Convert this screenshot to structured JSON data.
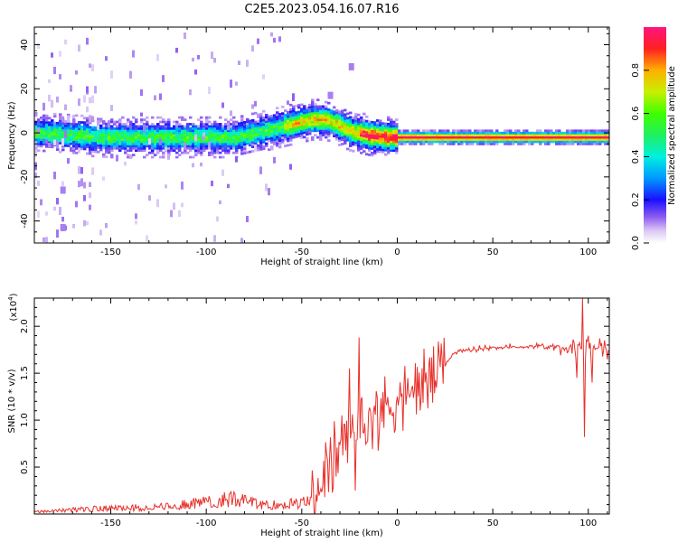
{
  "figure": {
    "title": "C2E5.2023.054.16.07.R16"
  },
  "chart_data": [
    {
      "type": "heatmap",
      "xlabel": "Height of straight line (km)",
      "ylabel": "Frequency (Hz)",
      "xlim": [
        -190,
        111
      ],
      "ylim": [
        -50,
        48
      ],
      "xticks": [
        -150,
        -100,
        -50,
        0,
        50,
        100
      ],
      "yticks": [
        -40,
        -20,
        0,
        20,
        40
      ],
      "ridge_center_hz": [
        [
          -188,
          0
        ],
        [
          -170,
          -1
        ],
        [
          -150,
          -2
        ],
        [
          -125,
          -2
        ],
        [
          -100,
          -2
        ],
        [
          -85,
          -2
        ],
        [
          -75,
          0
        ],
        [
          -65,
          2
        ],
        [
          -55,
          4
        ],
        [
          -45,
          6
        ],
        [
          -38,
          6
        ],
        [
          -32,
          4
        ],
        [
          -25,
          1
        ],
        [
          -15,
          -1
        ],
        [
          -5,
          -2
        ],
        [
          10,
          -2
        ],
        [
          40,
          -2
        ],
        [
          80,
          -2
        ],
        [
          95,
          -2
        ],
        [
          111,
          -2
        ]
      ],
      "colorbar": {
        "label": "Normalized spectral amplitude",
        "ticks": [
          0.0,
          0.2,
          0.4,
          0.6,
          0.8
        ],
        "range": [
          0,
          1
        ]
      }
    },
    {
      "type": "line",
      "xlabel": "Height of straight line (km)",
      "ylabel": "SNR (10 * v/v)",
      "multiplier_label": "(x10",
      "multiplier_exp": "4",
      "xlim": [
        -190,
        111
      ],
      "ylim": [
        0,
        2.3
      ],
      "xticks": [
        -150,
        -100,
        -50,
        0,
        50,
        100
      ],
      "yticks": [
        0.5,
        1.0,
        1.5,
        2.0
      ],
      "line_color": "#e8302a",
      "envelope": [
        [
          -190,
          0.02
        ],
        [
          -160,
          0.05
        ],
        [
          -120,
          0.07
        ],
        [
          -100,
          0.12
        ],
        [
          -85,
          0.15
        ],
        [
          -70,
          0.08
        ],
        [
          -55,
          0.1
        ],
        [
          -45,
          0.12
        ],
        [
          -40,
          0.35
        ],
        [
          -35,
          0.5
        ],
        [
          -30,
          0.7
        ],
        [
          -25,
          0.85
        ],
        [
          -20,
          0.95
        ],
        [
          -15,
          1.0
        ],
        [
          -10,
          1.08
        ],
        [
          -5,
          1.15
        ],
        [
          0,
          1.22
        ],
        [
          10,
          1.32
        ],
        [
          20,
          1.5
        ],
        [
          25,
          1.6
        ],
        [
          30,
          1.72
        ],
        [
          40,
          1.75
        ],
        [
          50,
          1.78
        ],
        [
          60,
          1.77
        ],
        [
          70,
          1.79
        ],
        [
          80,
          1.79
        ],
        [
          90,
          1.77
        ],
        [
          100,
          1.76
        ],
        [
          111,
          1.74
        ]
      ],
      "spikes": [
        [
          -20,
          1.88
        ],
        [
          -25,
          1.55
        ],
        [
          -22,
          0.25
        ],
        [
          94,
          1.45
        ],
        [
          97,
          2.3
        ],
        [
          98,
          0.82
        ],
        [
          100,
          1.9
        ],
        [
          102,
          1.4
        ]
      ]
    }
  ]
}
